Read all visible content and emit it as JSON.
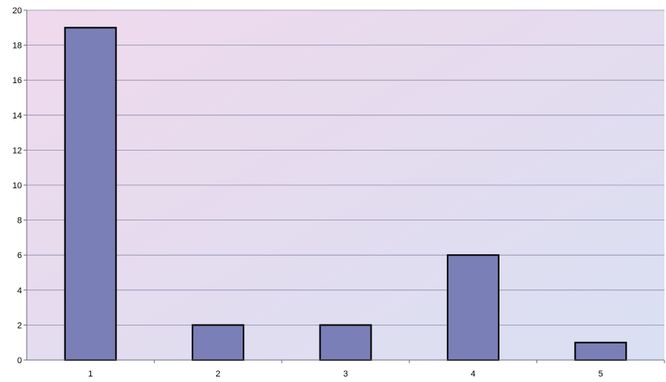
{
  "chart_data": {
    "type": "bar",
    "title": "",
    "xlabel": "",
    "ylabel": "",
    "categories": [
      "1",
      "2",
      "3",
      "4",
      "5"
    ],
    "values": [
      19,
      2,
      2,
      6,
      1
    ],
    "ylim": [
      0,
      20
    ],
    "yticks": [
      0,
      2,
      4,
      6,
      8,
      10,
      12,
      14,
      16,
      18,
      20
    ],
    "grid": true,
    "legend": "none",
    "colors": {
      "bar_fill": "#7b7fb8",
      "bar_stroke": "#000000",
      "plot_background_top": "#efd9ec",
      "plot_background_bottom": "#dcdff1",
      "gridline": "#8c8caa"
    }
  }
}
